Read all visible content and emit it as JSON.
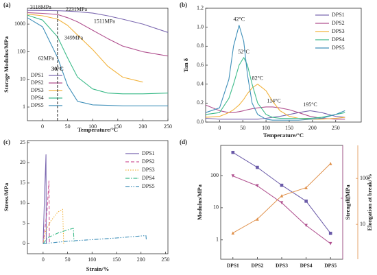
{
  "chart_data": [
    {
      "type": "line",
      "panel": "(a)",
      "xlabel": "Temperature/°C",
      "ylabel": "Storage Modulus/MPa",
      "x": [
        -30,
        0,
        30,
        50,
        70,
        100,
        130,
        160,
        200,
        250
      ],
      "xlim": [
        -30,
        250
      ],
      "xticks": [
        0,
        50,
        100,
        150,
        200,
        250
      ],
      "ylog": true,
      "ylim": [
        0.32,
        3750
      ],
      "yticks": [
        1,
        10,
        100,
        1000
      ],
      "legend": "lower left",
      "series": [
        {
          "name": "DPS1",
          "color": "#7b68b0",
          "values": [
            3118,
            3100,
            3050,
            2950,
            2800,
            2500,
            2000,
            1500,
            1000,
            500
          ]
        },
        {
          "name": "DPS2",
          "color": "#b0508f",
          "values": [
            2600,
            2450,
            2231,
            1700,
            1200,
            600,
            300,
            160,
            100,
            70
          ]
        },
        {
          "name": "DPS3",
          "color": "#f2b33d",
          "values": [
            2300,
            2000,
            1511,
            900,
            400,
            120,
            30,
            12,
            8,
            null
          ]
        },
        {
          "name": "DPS4",
          "color": "#3dbb8a",
          "values": [
            2100,
            1400,
            349,
            60,
            12,
            4.5,
            3.2,
            3,
            3,
            3.2
          ]
        },
        {
          "name": "DPS5",
          "color": "#3d8eb8",
          "values": [
            1700,
            800,
            62,
            6,
            1.6,
            1.2,
            1.15,
            1.1,
            1.1,
            1.1
          ]
        }
      ],
      "annotations": [
        {
          "text": "3118MPa",
          "x": 30,
          "y": 3118
        },
        {
          "text": "2231MPa",
          "x": 30,
          "y": 2231
        },
        {
          "text": "1511MPa",
          "x": 30,
          "y": 1511
        },
        {
          "text": "349MPa",
          "x": 30,
          "y": 349
        },
        {
          "text": "62MPa",
          "x": 30,
          "y": 62
        },
        {
          "text": "30°C",
          "x": 30
        }
      ]
    },
    {
      "type": "line",
      "panel": "(b)",
      "xlabel": "Temperature/°C",
      "ylabel": "Tan δ",
      "x": [
        -30,
        0,
        20,
        30,
        42,
        52,
        60,
        70,
        82,
        100,
        114,
        130,
        150,
        170,
        195,
        220,
        250,
        270
      ],
      "xlim": [
        -30,
        305
      ],
      "xticks": [
        0,
        50,
        100,
        150,
        200,
        250
      ],
      "ylim": [
        0,
        1.2
      ],
      "yticks": [
        {
          "value": 0,
          "label": "0.0"
        },
        0.2,
        0.4,
        0.6,
        0.8,
        {
          "value": 1,
          "label": "1.0"
        },
        1.2
      ],
      "legend": "upper right",
      "series": [
        {
          "name": "DPS1",
          "color": "#7b68b0",
          "values": [
            0.04,
            0.03,
            0.03,
            0.03,
            0.03,
            0.03,
            0.03,
            0.03,
            0.03,
            0.04,
            0.05,
            0.06,
            0.08,
            0.1,
            0.12,
            0.1,
            0.06,
            0.05
          ]
        },
        {
          "name": "DPS2",
          "color": "#b0508f",
          "values": [
            0.18,
            0.12,
            0.1,
            0.1,
            0.11,
            0.12,
            0.13,
            0.14,
            0.15,
            0.16,
            0.16,
            0.15,
            0.13,
            0.1,
            0.06,
            0.04,
            0.03,
            0.03
          ]
        },
        {
          "name": "DPS3",
          "color": "#f2b33d",
          "values": [
            0.05,
            0.06,
            0.1,
            0.13,
            0.18,
            0.24,
            0.3,
            0.36,
            0.4,
            0.33,
            0.22,
            0.12,
            0.06,
            0.04,
            0.03,
            0.03,
            0.04,
            0.05
          ]
        },
        {
          "name": "DPS4",
          "color": "#3dbb8a",
          "values": [
            0.08,
            0.1,
            0.25,
            0.4,
            0.6,
            0.68,
            0.6,
            0.4,
            0.2,
            0.08,
            0.05,
            0.04,
            0.04,
            0.04,
            0.04,
            0.05,
            0.08,
            0.1
          ]
        },
        {
          "name": "DPS5",
          "color": "#3d8eb8",
          "values": [
            0.1,
            0.15,
            0.45,
            0.8,
            1.02,
            0.85,
            0.5,
            0.2,
            0.08,
            0.03,
            0.02,
            0.02,
            0.02,
            0.02,
            0.03,
            0.04,
            0.08,
            0.12
          ]
        }
      ],
      "annotations": [
        {
          "text": "42°C",
          "x": 42,
          "y": 1.02
        },
        {
          "text": "52°C",
          "x": 52,
          "y": 0.68
        },
        {
          "text": "82°C",
          "x": 82,
          "y": 0.4
        },
        {
          "text": "114°C",
          "x": 114,
          "y": 0.16
        },
        {
          "text": "195°C",
          "x": 195,
          "y": 0.12
        }
      ]
    },
    {
      "type": "line",
      "panel": "(c)",
      "xlabel": "Strain/%",
      "ylabel": "Stress/MPa",
      "xlim": [
        -32,
        255
      ],
      "xticks": [
        0,
        50,
        100,
        150,
        200,
        250
      ],
      "ylim": [
        -2.5,
        25.5
      ],
      "yticks": [
        0,
        5,
        10,
        15,
        20,
        25
      ],
      "legend": "upper right",
      "series": [
        {
          "name": "DPS1",
          "color": "#7b68b0",
          "dash": "solid",
          "x": [
            0,
            3,
            6,
            6.5
          ],
          "values": [
            0,
            12,
            22,
            0
          ]
        },
        {
          "name": "DPS2",
          "color": "#d05a9a",
          "dash": "dashed",
          "x": [
            0,
            4,
            8,
            12,
            13
          ],
          "values": [
            0,
            4,
            8,
            15.5,
            0
          ]
        },
        {
          "name": "DPS3",
          "color": "#f2b33d",
          "dash": "dotted",
          "x": [
            0,
            5,
            15,
            30,
            40,
            42
          ],
          "values": [
            0,
            3,
            5.5,
            7.8,
            8.5,
            0
          ]
        },
        {
          "name": "DPS4",
          "color": "#3dbb8a",
          "dash": "dashdot",
          "x": [
            0,
            10,
            30,
            50,
            62,
            63
          ],
          "values": [
            0,
            1.5,
            2.6,
            3.4,
            3.8,
            0.5
          ]
        },
        {
          "name": "DPS5",
          "color": "#3d8eb8",
          "dash": "dashdotdot",
          "x": [
            0,
            50,
            100,
            150,
            210,
            211
          ],
          "values": [
            0,
            0.6,
            1,
            1.4,
            2,
            0.8
          ]
        }
      ]
    },
    {
      "type": "multiaxis",
      "panel": "(d)",
      "categories": [
        "DPS1",
        "DPS2",
        "DPS3",
        "DPS4",
        "DPS5"
      ],
      "ylabel": "Modulus/MPa",
      "y2label": "Strength/MPa",
      "y3label": "Elongation at break/%",
      "ylog": true,
      "ylim": [
        0.25,
        870
      ],
      "yticks": [
        1,
        10,
        100
      ],
      "y2lim": [
        1.15,
        65
      ],
      "y2ticks": [
        10
      ],
      "y3lim": [
        1.74,
        524
      ],
      "y3ticks": [
        10,
        100
      ],
      "series": [
        {
          "color": "#6a5aa8",
          "axis": "y",
          "marker": "square",
          "values": [
            525,
            180,
            50,
            16,
            1.6
          ]
        },
        {
          "color": "#b0508f",
          "axis": "y2",
          "marker": "triangle-down",
          "values": [
            22,
            15.5,
            8.5,
            3.8,
            2
          ]
        },
        {
          "color": "#e0904a",
          "axis": "y3",
          "marker": "triangle-up",
          "values": [
            6.5,
            13,
            42,
            63,
            211
          ]
        }
      ]
    }
  ]
}
